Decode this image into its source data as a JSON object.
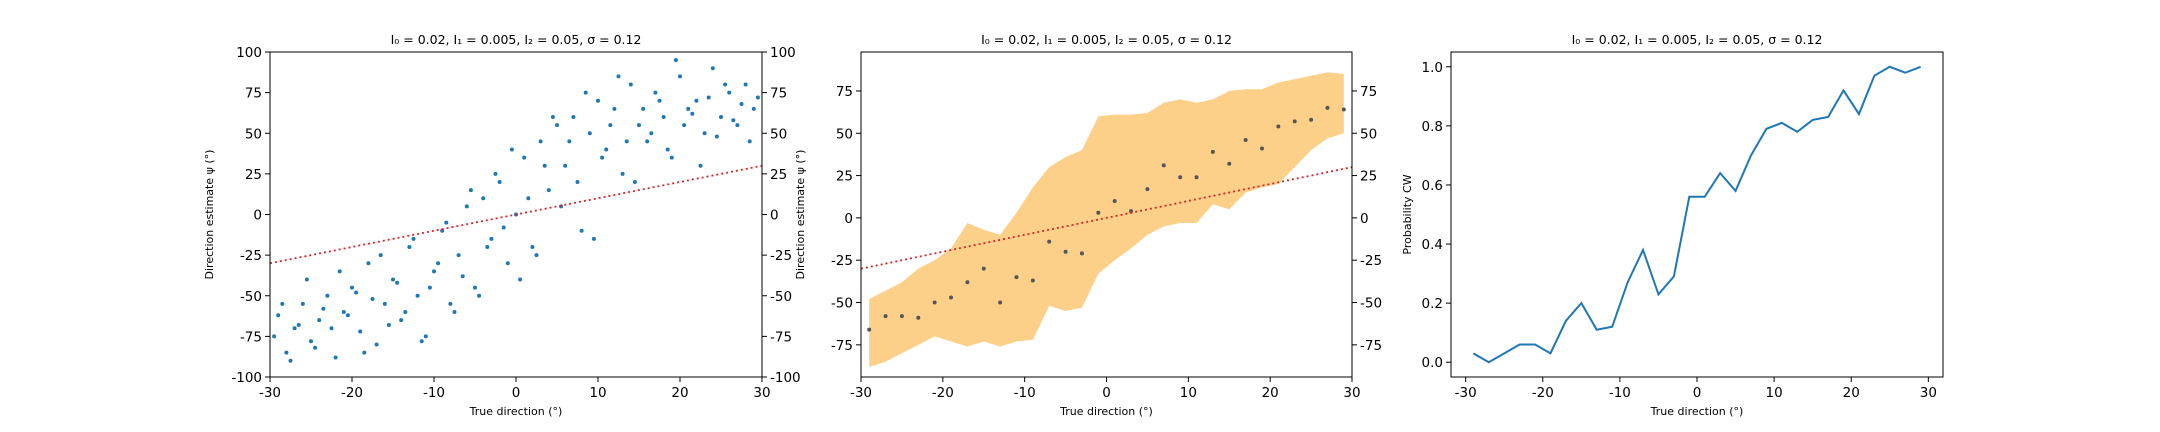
{
  "chart_data": [
    {
      "type": "scatter",
      "title": "I₀ = 0.02, I₁ = 0.005, I₂ = 0.05, σ = 0.12",
      "x_label": "True direction (°)",
      "y_label": "Direction estimate ψ (°)",
      "xlim": [
        -30,
        30
      ],
      "ylim": [
        -100,
        100
      ],
      "y2lim": [
        -100,
        100
      ],
      "xticks": [
        -30,
        -20,
        -10,
        0,
        10,
        20,
        30
      ],
      "yticks": [
        -100,
        -75,
        -50,
        -25,
        0,
        25,
        50,
        75,
        100
      ],
      "y2ticks": [
        -100,
        -75,
        -50,
        -25,
        0,
        25,
        50,
        75,
        100
      ],
      "series": [
        {
          "kind": "scatter",
          "color": "#1f77b4",
          "x": [
            -29,
            -28,
            -27,
            -26,
            -25,
            -24,
            -23,
            -22,
            -21,
            -20,
            -19,
            -18,
            -17,
            -16,
            -15,
            -14,
            -13,
            -12,
            -11,
            -10,
            -9,
            -8,
            -7,
            -6,
            -5,
            -4,
            -3,
            -2,
            -1,
            0,
            1,
            2,
            3,
            4,
            5,
            6,
            7,
            8,
            9,
            10,
            11,
            12,
            13,
            14,
            15,
            16,
            17,
            18,
            19,
            20,
            21,
            22,
            23,
            24,
            25,
            26,
            27,
            28,
            29,
            -29.5,
            -28.5,
            -27.5,
            -26.5,
            -25.5,
            -24.5,
            -23.5,
            -22.5,
            -21.5,
            -20.5,
            -19.5,
            -18.5,
            -17.5,
            -16.5,
            -15.5,
            -14.5,
            -13.5,
            -12.5,
            -11.5,
            -10.5,
            -9.5,
            -8.5,
            -7.5,
            -6.5,
            -5.5,
            -4.5,
            -3.5,
            -2.5,
            -1.5,
            -0.5,
            0.5,
            1.5,
            2.5,
            3.5,
            4.5,
            5.5,
            6.5,
            7.5,
            8.5,
            9.5,
            10.5,
            11.5,
            12.5,
            13.5,
            14.5,
            15.5,
            16.5,
            17.5,
            18.5,
            19.5,
            20.5,
            21.5,
            22.5,
            23.5,
            24.5,
            25.5,
            26.5,
            27.5,
            28.5,
            29.5
          ],
          "values": [
            -62,
            -85,
            -70,
            -55,
            -78,
            -65,
            -50,
            -88,
            -60,
            -45,
            -72,
            -30,
            -80,
            -55,
            -40,
            -65,
            -20,
            -50,
            -75,
            -35,
            -10,
            -55,
            -25,
            5,
            -45,
            10,
            -15,
            20,
            -30,
            0,
            35,
            -20,
            45,
            15,
            55,
            30,
            60,
            -10,
            50,
            70,
            40,
            65,
            25,
            80,
            55,
            45,
            75,
            60,
            35,
            85,
            65,
            70,
            50,
            90,
            60,
            75,
            55,
            80,
            65,
            -75,
            -55,
            -90,
            -68,
            -40,
            -82,
            -58,
            -70,
            -35,
            -62,
            -48,
            -85,
            -52,
            -25,
            -68,
            -42,
            -60,
            -15,
            -78,
            -45,
            -30,
            -5,
            -60,
            -38,
            15,
            -50,
            -20,
            25,
            -8,
            40,
            -40,
            10,
            -25,
            30,
            60,
            5,
            45,
            20,
            75,
            -15,
            35,
            55,
            85,
            45,
            20,
            65,
            50,
            70,
            40,
            95,
            55,
            62,
            30,
            72,
            48,
            80,
            58,
            68,
            45,
            72
          ]
        },
        {
          "kind": "line",
          "style": "dotted",
          "color": "#d62728",
          "x": [
            -30,
            30
          ],
          "values": [
            -30,
            30
          ]
        }
      ]
    },
    {
      "type": "band",
      "title": "I₀ = 0.02, I₁ = 0.005, I₂ = 0.05, σ = 0.12",
      "x_label": "True direction (°)",
      "y_label": "Direction estimate ψ (°)",
      "xlim": [
        -30,
        30
      ],
      "ylim": [
        -94,
        98
      ],
      "y2lim": [
        -94,
        98
      ],
      "xticks": [
        -30,
        -20,
        -10,
        0,
        10,
        20,
        30
      ],
      "yticks": [
        -75,
        -50,
        -25,
        0,
        25,
        50,
        75
      ],
      "y2ticks": [
        -75,
        -50,
        -25,
        0,
        25,
        50,
        75
      ],
      "series": [
        {
          "kind": "band",
          "color": "#fdd089",
          "x": [
            -29,
            -27,
            -25,
            -23,
            -21,
            -19,
            -17,
            -15,
            -13,
            -11,
            -9,
            -7,
            -5,
            -3,
            -1,
            1,
            3,
            5,
            7,
            9,
            11,
            13,
            15,
            17,
            19,
            21,
            23,
            25,
            27,
            29
          ],
          "lower": [
            -88,
            -85,
            -80,
            -75,
            -70,
            -73,
            -76,
            -73,
            -76,
            -73,
            -72,
            -52,
            -55,
            -53,
            -33,
            -25,
            -18,
            -10,
            -5,
            -3,
            -3,
            8,
            5,
            15,
            18,
            20,
            30,
            40,
            47,
            50
          ],
          "upper": [
            -48,
            -43,
            -38,
            -30,
            -25,
            -18,
            -3,
            -7,
            -10,
            3,
            18,
            30,
            36,
            40,
            60,
            61,
            61,
            62,
            68,
            70,
            68,
            70,
            75,
            76,
            76,
            80,
            82,
            84,
            86,
            85
          ]
        },
        {
          "kind": "scatter",
          "color": "#555555",
          "x": [
            -29,
            -27,
            -25,
            -23,
            -21,
            -19,
            -17,
            -15,
            -13,
            -11,
            -9,
            -7,
            -5,
            -3,
            -1,
            1,
            3,
            5,
            7,
            9,
            11,
            13,
            15,
            17,
            19,
            21,
            23,
            25,
            27,
            29
          ],
          "values": [
            -66,
            -58,
            -58,
            -59,
            -50,
            -47,
            -38,
            -30,
            -50,
            -35,
            -37,
            -14,
            -20,
            -21,
            3,
            10,
            4,
            17,
            31,
            24,
            24,
            39,
            32,
            46,
            41,
            54,
            57,
            58,
            65,
            64
          ]
        },
        {
          "kind": "line",
          "style": "dotted",
          "color": "#d62728",
          "x": [
            -30,
            30
          ],
          "values": [
            -30,
            30
          ]
        }
      ]
    },
    {
      "type": "line",
      "title": "I₀ = 0.02, I₁ = 0.005, I₂ = 0.05, σ = 0.12",
      "x_label": "True direction (°)",
      "y_label": "Probability CW",
      "xlim": [
        -31.9,
        31.9
      ],
      "ylim": [
        -0.05,
        1.05
      ],
      "xticks": [
        -30,
        -20,
        -10,
        0,
        10,
        20,
        30
      ],
      "yticks": [
        {
          "value": 0,
          "label": "0.0"
        },
        0.2,
        0.4,
        0.6,
        0.8,
        {
          "value": 1,
          "label": "1.0"
        }
      ],
      "series": [
        {
          "kind": "line",
          "style": "solid",
          "color": "#1f77b4",
          "x": [
            -29,
            -27,
            -25,
            -23,
            -21,
            -19,
            -17,
            -15,
            -13,
            -11,
            -9,
            -7,
            -5,
            -3,
            -1,
            1,
            3,
            5,
            7,
            9,
            11,
            13,
            15,
            17,
            19,
            21,
            23,
            25,
            27,
            29
          ],
          "values": [
            0.03,
            0.0,
            0.03,
            0.06,
            0.06,
            0.03,
            0.14,
            0.2,
            0.11,
            0.12,
            0.27,
            0.38,
            0.23,
            0.29,
            0.56,
            0.56,
            0.64,
            0.58,
            0.7,
            0.79,
            0.81,
            0.78,
            0.82,
            0.83,
            0.92,
            0.84,
            0.97,
            1.0,
            0.98,
            1.0
          ]
        }
      ]
    }
  ]
}
